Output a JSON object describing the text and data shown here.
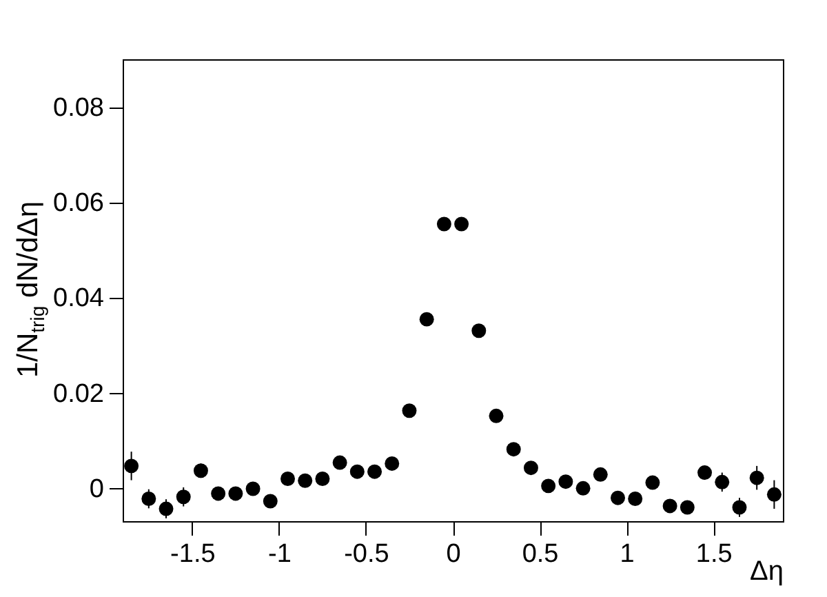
{
  "chart_data": {
    "type": "scatter",
    "xlabel": "Δη",
    "ylabel": "1/N$_{trig}$ dN/dΔη",
    "x": [
      -1.85,
      -1.75,
      -1.65,
      -1.55,
      -1.45,
      -1.35,
      -1.25,
      -1.15,
      -1.05,
      -0.95,
      -0.85,
      -0.75,
      -0.65,
      -0.55,
      -0.45,
      -0.35,
      -0.25,
      -0.15,
      -0.05,
      0.05,
      0.15,
      0.25,
      0.35,
      0.45,
      0.55,
      0.65,
      0.75,
      0.85,
      0.95,
      1.05,
      1.15,
      1.25,
      1.35,
      1.45,
      1.55,
      1.65,
      1.75,
      1.85
    ],
    "series": [
      {
        "color": "#000000",
        "values": [
          0.0046,
          -0.0023,
          -0.0044,
          -0.0019,
          0.0036,
          -0.0012,
          -0.0012,
          -0.0002,
          -0.0028,
          0.0019,
          0.0015,
          0.0019,
          0.0053,
          0.0034,
          0.0034,
          0.0051,
          0.0162,
          0.0354,
          0.0554,
          0.0554,
          0.033,
          0.0151,
          0.0081,
          0.0042,
          0.0004,
          0.0013,
          -0.0001,
          0.0028,
          -0.0021,
          -0.0023,
          0.0011,
          -0.0038,
          -0.0041,
          0.0032,
          0.0012,
          -0.0041,
          0.0021,
          -0.0014
        ],
        "errors": [
          0.003,
          0.002,
          0.002,
          0.002,
          0.0015,
          null,
          null,
          null,
          null,
          null,
          null,
          null,
          null,
          null,
          null,
          null,
          null,
          null,
          null,
          null,
          null,
          null,
          null,
          null,
          null,
          null,
          null,
          null,
          null,
          null,
          null,
          null,
          null,
          0.0015,
          0.002,
          0.002,
          0.0025,
          0.003
        ]
      }
    ],
    "xlim": [
      -1.9,
      1.9
    ],
    "xticks": [
      -1.5,
      -1,
      -0.5,
      0,
      0.5,
      1,
      1.5
    ],
    "ylim": [
      -0.007,
      0.09
    ],
    "yticks": [
      0,
      0.02,
      0.04,
      0.06,
      0.08
    ],
    "marker": "circle",
    "grid": false
  }
}
